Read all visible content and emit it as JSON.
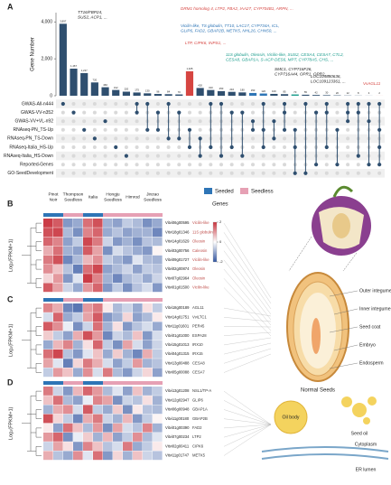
{
  "panel_labels": [
    "A",
    "B",
    "C",
    "D"
  ],
  "chart_data": {
    "type": "upset",
    "ylabel": "Gene Number",
    "ylim": [
      0,
      4500
    ],
    "yticks": [
      0,
      {
        "value": 2000,
        "label": "2,000"
      },
      {
        "value": 4000,
        "label": "4,000"
      }
    ],
    "values": [
      3897,
      1467,
      1227,
      720,
      460,
      312,
      220,
      175,
      130,
      96,
      84,
      70,
      1325,
      420,
      310,
      250,
      210,
      180,
      150,
      120,
      100,
      85,
      70,
      55,
      42,
      30,
      20,
      12,
      8,
      4,
      2
    ],
    "value_labels": [
      "3,897",
      "1,467",
      "1,227",
      "720",
      "460",
      "312",
      "220",
      "175",
      "130",
      "96",
      "84",
      "70",
      "1,325",
      "420",
      "310",
      "250",
      "210",
      "180",
      "150",
      "120",
      "100",
      "85",
      "70",
      "55",
      "42",
      "30",
      "20",
      "12",
      "8",
      "4",
      "2"
    ],
    "colors": [
      "#2f4f6f",
      "#2f4f6f",
      "#2f4f6f",
      "#2f4f6f",
      "#2f4f6f",
      "#2f4f6f",
      "#2f4f6f",
      "#2f4f6f",
      "#2f4f6f",
      "#2f4f6f",
      "#2f4f6f",
      "#2f4f6f",
      "#d64541",
      "#2f4f6f",
      "#2f4f6f",
      "#2f4f6f",
      "#2f4f6f",
      "#2f4f6f",
      "#2e75b6",
      "#2e75b6",
      "#2f4f6f",
      "#2f4f6f",
      "#1a9c8c",
      "#2f4f6f",
      "#2f4f6f",
      "#2f4f6f",
      "#2f4f6f",
      "#2f4f6f",
      "#2f4f6f",
      "#2f4f6f",
      "#d64541"
    ],
    "sets": [
      "GWAS-All-n444",
      "GWAS-VV-n352",
      "GWAS-VV+VL-n92",
      "RNAseq-PN_TS-Up",
      "RNAseq-PN_TS-Down",
      "RNAseq-Italia_HS-Up",
      "RNAseq-Italia_HS-Down",
      "Reported-Genes",
      "GO-SeedDevelopment"
    ],
    "intersections": [
      [
        0
      ],
      [
        1
      ],
      [
        3
      ],
      [
        4
      ],
      [
        2
      ],
      [
        5
      ],
      [
        6
      ],
      [
        0,
        1
      ],
      [
        0,
        3
      ],
      [
        1,
        3
      ],
      [
        0,
        4
      ],
      [
        1,
        4
      ],
      [
        3,
        5
      ],
      [
        4,
        6
      ],
      [
        0,
        5
      ],
      [
        0,
        6
      ],
      [
        1,
        5
      ],
      [
        1,
        6
      ],
      [
        2,
        3
      ],
      [
        0,
        3,
        5
      ],
      [
        2,
        4
      ],
      [
        0,
        1,
        3
      ],
      [
        3,
        5,
        8
      ],
      [
        0,
        8
      ],
      [
        1,
        7
      ],
      [
        0,
        1,
        5
      ],
      [
        3,
        7
      ],
      [
        0,
        1,
        2
      ],
      [
        0,
        1,
        6
      ],
      [
        0,
        2,
        7
      ],
      [
        0,
        3,
        5,
        7
      ]
    ],
    "annotations": [
      {
        "lines": [
          "TT16/FBP24,",
          "SUS2, ACP1, ..."
        ],
        "color": "#222222"
      },
      {
        "lines": [
          "DRM1 homolog 4, LTP2, FBA2, IAA27, CYP704B1, ARPN, ..."
        ],
        "color": "#d64541"
      },
      {
        "lines": [
          "Vicilin-like, TS globulin, TT10, LAC17, CYP734A, ICL,",
          "GLIP6, FAD2, GBAP2B, METK5, NHL26, CHN50, ..."
        ],
        "color": "#2e75b6"
      },
      {
        "lines": [
          "LTP, CIPK6, INPS1, ..."
        ],
        "color": "#d64541"
      },
      {
        "lines": [
          "11S globulin, Oleosin, Vicilin-like, SUS2, CESA4, CESA7, CTL2,",
          "CESA8, GBAP1A, S-ACP-DES6, MPT, CYP78A5, CHS, ..."
        ],
        "color": "#1a9c8c"
      },
      {
        "lines": [
          "SMC1, CYP716F26,",
          "CYP716A44, OPR1, OPR2, ..."
        ],
        "color": "#222222"
      },
      {
        "lines": [
          "LOC104880636,",
          "LOC109123361, ..."
        ],
        "color": "#222222"
      },
      {
        "lines": [
          "VvAGL11"
        ],
        "color": "#d64541"
      }
    ]
  },
  "heatmap": {
    "ylabel": "Log₂(FPKM+1)",
    "legend": [
      "Seeded",
      "Seedless"
    ],
    "legend_colors": [
      "#2e75b6",
      "#e6a0b4"
    ],
    "genes_title": "Genes",
    "scale_lim": [
      -2,
      2
    ],
    "scale_ticks": [
      -2,
      0,
      2
    ],
    "cultivars": [
      {
        "name": [
          "Pinot",
          "Noir"
        ],
        "status": 0,
        "columns": 2
      },
      {
        "name": [
          "Thompson",
          "Seedless"
        ],
        "status": 1,
        "columns": 2
      },
      {
        "name": [
          "Italia"
        ],
        "status": 0,
        "columns": 2
      },
      {
        "name": [
          "Hongju",
          "Seedless"
        ],
        "status": 1,
        "columns": 2
      },
      {
        "name": [
          "Himrod"
        ],
        "status": 1,
        "columns": 2
      },
      {
        "name": [
          "Jinzao",
          "Seedless"
        ],
        "status": 1,
        "columns": 2
      }
    ],
    "panels": [
      {
        "genes": [
          {
            "id": "Vitvi06g00595",
            "name": "Vicilin-like"
          },
          {
            "id": "Vitvi18g01346",
            "name": "11S globulin"
          },
          {
            "id": "Vitvi14g01629",
            "name": "Oleosin"
          },
          {
            "id": "Vitvi03g00756",
            "name": "Caleosin"
          },
          {
            "id": "Vitvi09g01727",
            "name": "Vicilin-like"
          },
          {
            "id": "Vitvi02g00874",
            "name": "Oleosin"
          },
          {
            "id": "Vitvi07g02964",
            "name": "Oleosin"
          },
          {
            "id": "Vitvi01g01500",
            "name": "Vicilin-like"
          }
        ],
        "values": [
          [
            1.9,
            1.6,
            -1.2,
            -1.0,
            1.4,
            1.7,
            -0.9,
            -1.1,
            -0.6,
            -0.8,
            -1.3,
            -1.0
          ],
          [
            1.7,
            1.8,
            -0.8,
            -1.3,
            1.2,
            1.5,
            -1.0,
            -0.7,
            -1.1,
            -0.9,
            -0.9,
            -1.4
          ],
          [
            1.5,
            1.2,
            -1.1,
            -0.6,
            1.8,
            1.3,
            -0.5,
            -1.2,
            -0.9,
            -1.3,
            -0.7,
            -0.8
          ],
          [
            0.8,
            1.4,
            -0.9,
            -1.1,
            1.6,
            0.9,
            -1.3,
            -0.4,
            -0.7,
            -1.0,
            -1.2,
            0.1
          ],
          [
            1.3,
            1.7,
            -1.4,
            -0.8,
            0.7,
            1.1,
            -0.6,
            -0.9,
            -1.2,
            -0.3,
            -0.8,
            -0.9
          ],
          [
            1.1,
            0.6,
            -0.7,
            -1.5,
            1.4,
            1.8,
            -1.1,
            -0.8,
            -0.5,
            -1.1,
            -0.6,
            -0.7
          ],
          [
            0.4,
            1.0,
            -1.2,
            -0.3,
            1.9,
            1.2,
            -0.9,
            -1.4,
            -0.8,
            -0.6,
            -1.0,
            -0.5
          ],
          [
            1.6,
            0.9,
            -0.5,
            -1.0,
            1.0,
            1.5,
            -1.2,
            -0.6,
            -1.3,
            -0.7,
            -0.4,
            -1.2
          ]
        ]
      },
      {
        "genes": [
          {
            "id": "Vitvi18g00189",
            "name": "AGL11"
          },
          {
            "id": "Vitvi14g01751",
            "name": "VviLTC1"
          },
          {
            "id": "Vitvi11g01601",
            "name": "PER45"
          },
          {
            "id": "Vitvi01g01000",
            "name": "ESPA28"
          },
          {
            "id": "Vitvi15g01013",
            "name": "IRX10"
          },
          {
            "id": "Vitvi04g01315",
            "name": "IRX15"
          },
          {
            "id": "Vitvi13g00488",
            "name": "CESA8"
          },
          {
            "id": "Vitvi05g00088",
            "name": "CESA7"
          }
        ],
        "values": [
          [
            1.2,
            0.8,
            -1.4,
            -1.6,
            1.0,
            1.3,
            0.2,
            -0.8,
            -0.5,
            -1.0,
            0.3,
            -0.6
          ],
          [
            -0.4,
            1.5,
            -1.0,
            -0.6,
            0.9,
            1.6,
            -1.2,
            -0.9,
            0.4,
            -1.1,
            -0.8,
            0.2
          ],
          [
            1.6,
            1.1,
            -0.2,
            -1.3,
            -0.5,
            1.4,
            -0.9,
            0.3,
            -1.2,
            -0.7,
            -0.4,
            -1.0
          ],
          [
            0.5,
            -0.6,
            -1.1,
            0.8,
            1.7,
            1.0,
            -1.4,
            -0.5,
            -0.8,
            0.6,
            -1.2,
            -0.4
          ],
          [
            -1.0,
            0.7,
            1.2,
            -0.9,
            0.3,
            1.5,
            -0.6,
            -1.3,
            0.9,
            -0.4,
            -1.1,
            -0.5
          ],
          [
            1.4,
            1.8,
            -0.7,
            -1.2,
            -0.3,
            0.6,
            -1.0,
            0.5,
            -0.9,
            -1.4,
            0.8,
            -0.6
          ],
          [
            0.9,
            -0.3,
            -1.5,
            0.4,
            1.3,
            0.8,
            -0.4,
            -1.1,
            -0.6,
            1.0,
            -0.9,
            -0.7
          ],
          [
            -0.6,
            1.0,
            0.6,
            -1.0,
            1.1,
            -0.4,
            1.3,
            -0.8,
            -1.2,
            -0.5,
            0.4,
            -1.1
          ]
        ]
      },
      {
        "genes": [
          {
            "id": "Vitvi13g01208",
            "name": "NSL1/TP-A"
          },
          {
            "id": "Vitvi12g02947",
            "name": "GLIP6"
          },
          {
            "id": "Vitvi06g00948",
            "name": "GBAP1A"
          },
          {
            "id": "Vitvi11g00180",
            "name": "GBAP2B"
          },
          {
            "id": "Vitvi01g00390",
            "name": "FAD2"
          },
          {
            "id": "Vitvi07g00234",
            "name": "LTP2"
          },
          {
            "id": "Vitvi02g00411",
            "name": "CIPK6"
          },
          {
            "id": "Vitvi11g01747",
            "name": "METK5"
          }
        ],
        "values": [
          [
            1.3,
            -0.5,
            -1.2,
            0.7,
            1.5,
            1.0,
            -0.8,
            -0.3,
            -1.1,
            0.6,
            -0.9,
            -0.6
          ],
          [
            0.6,
            1.4,
            -0.8,
            -1.1,
            -0.2,
            1.2,
            0.9,
            -1.3,
            -0.5,
            -0.7,
            0.3,
            -0.9
          ],
          [
            -0.9,
            0.8,
            1.1,
            -0.4,
            1.6,
            -0.6,
            -1.0,
            0.5,
            -1.3,
            0.2,
            -0.7,
            -0.8
          ],
          [
            1.7,
            0.4,
            -0.6,
            -1.4,
            0.8,
            1.3,
            -0.5,
            -0.9,
            0.7,
            -1.2,
            -0.6,
            0.1
          ],
          [
            0.2,
            -1.1,
            1.4,
            0.6,
            -0.8,
            1.0,
            -1.3,
            0.9,
            -0.4,
            -0.7,
            1.2,
            -0.9
          ],
          [
            1.0,
            1.5,
            -1.3,
            -0.2,
            0.5,
            -0.9,
            0.7,
            -1.1,
            -0.6,
            1.1,
            -0.8,
            -0.3
          ],
          [
            -0.5,
            0.9,
            0.3,
            -1.2,
            1.2,
            0.6,
            -0.7,
            -0.4,
            1.3,
            -1.0,
            -0.6,
            0.2
          ],
          [
            0.8,
            -0.7,
            -1.0,
            1.1,
            -0.3,
            1.4,
            -1.2,
            0.4,
            -0.9,
            0.6,
            -0.5,
            -0.7
          ]
        ]
      }
    ]
  },
  "illustration": {
    "seed_labels": [
      "Outer integument",
      "Inner integument",
      "Seed coat",
      "Embryo",
      "Endosperm"
    ],
    "seed_title": "Normal Seeds",
    "oil_body": "Oil body",
    "seed_oil": "Seed oil",
    "cytoplasm": "Cytoplasm",
    "er_lumen": "ER lumen"
  }
}
